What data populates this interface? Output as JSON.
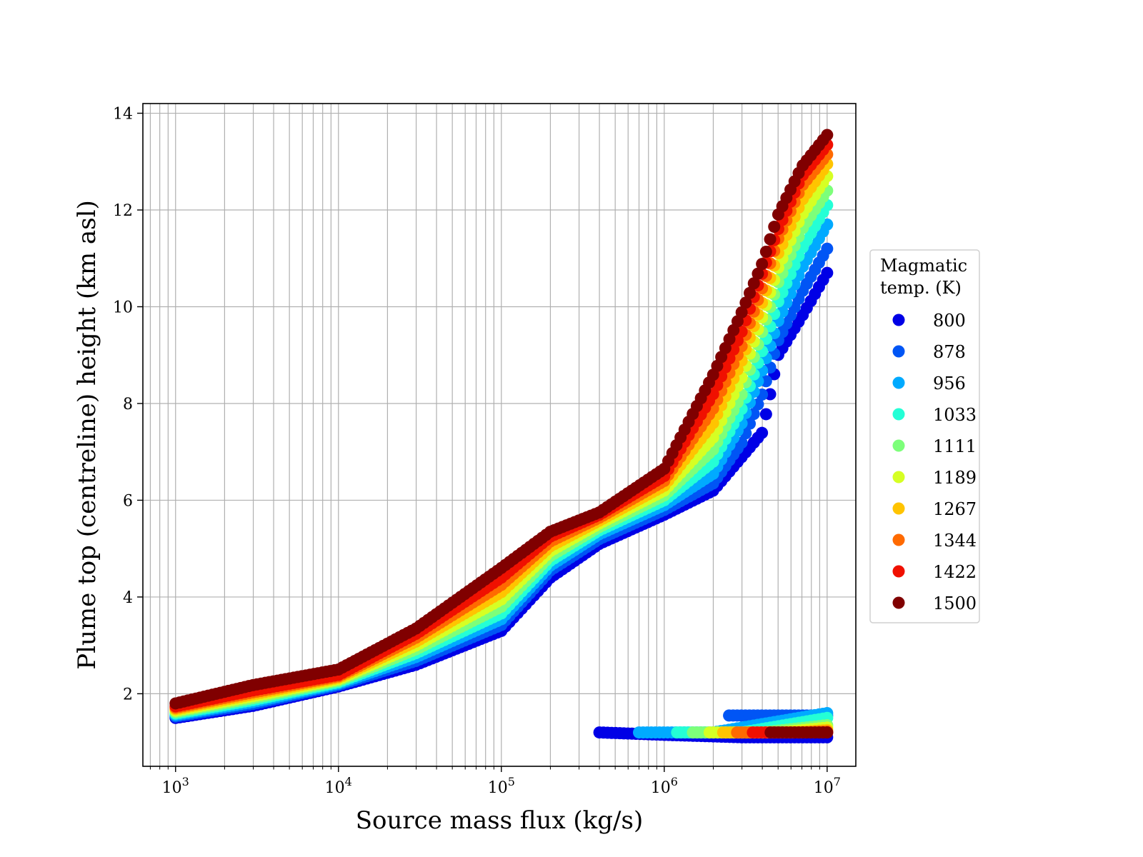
{
  "chart_data": {
    "type": "scatter",
    "title": "",
    "xlabel": "Source mass flux (kg/s)",
    "ylabel": "Plume top (centreline) height (km asl)",
    "xscale": "log",
    "xlim": [
      630,
      15000000
    ],
    "ylim": [
      0.5,
      14.2
    ],
    "x_ticks": [
      {
        "value": 1000,
        "base": "10",
        "exp": "3"
      },
      {
        "value": 10000,
        "base": "10",
        "exp": "4"
      },
      {
        "value": 100000,
        "base": "10",
        "exp": "5"
      },
      {
        "value": 1000000,
        "base": "10",
        "exp": "6"
      },
      {
        "value": 10000000,
        "base": "10",
        "exp": "7"
      }
    ],
    "y_ticks": [
      2,
      4,
      6,
      8,
      10,
      12,
      14
    ],
    "grid": true,
    "legend": {
      "title_lines": [
        "Magmatic",
        "temp. (K)"
      ],
      "placement": "outside-right"
    },
    "series": [
      {
        "name": "800",
        "color": "#0000e6",
        "main": [
          [
            1000,
            1.5
          ],
          [
            3000,
            1.75
          ],
          [
            10000,
            2.15
          ],
          [
            30000,
            2.6
          ],
          [
            100000,
            3.3
          ],
          [
            200000,
            4.4
          ],
          [
            400000,
            5.1
          ],
          [
            1000000,
            5.7
          ],
          [
            2000000,
            6.2
          ],
          [
            3000000,
            6.9
          ],
          [
            4000000,
            7.4
          ],
          [
            5000000,
            9.0
          ],
          [
            7000000,
            9.8
          ],
          [
            10000000,
            10.7
          ]
        ],
        "low": [
          [
            400000,
            1.2
          ],
          [
            1000000,
            1.15
          ],
          [
            3000000,
            1.1
          ],
          [
            10000000,
            1.1
          ]
        ]
      },
      {
        "name": "878",
        "color": "#0055f5",
        "main": [
          [
            1000,
            1.53
          ],
          [
            3000,
            1.79
          ],
          [
            10000,
            2.18
          ],
          [
            30000,
            2.68
          ],
          [
            100000,
            3.42
          ],
          [
            200000,
            4.55
          ],
          [
            400000,
            5.2
          ],
          [
            1000000,
            5.8
          ],
          [
            2000000,
            6.35
          ],
          [
            3000000,
            7.2
          ],
          [
            4000000,
            8.2
          ],
          [
            5000000,
            9.3
          ],
          [
            7000000,
            10.3
          ],
          [
            10000000,
            11.2
          ]
        ],
        "low": [
          [
            2500000,
            1.55
          ],
          [
            5000000,
            1.55
          ],
          [
            10000000,
            1.55
          ]
        ]
      },
      {
        "name": "956",
        "color": "#00aaff",
        "main": [
          [
            1000,
            1.56
          ],
          [
            3000,
            1.83
          ],
          [
            10000,
            2.21
          ],
          [
            30000,
            2.76
          ],
          [
            100000,
            3.54
          ],
          [
            200000,
            4.65
          ],
          [
            400000,
            5.3
          ],
          [
            1000000,
            5.9
          ],
          [
            2000000,
            6.55
          ],
          [
            3000000,
            7.6
          ],
          [
            4000000,
            8.7
          ],
          [
            5000000,
            9.7
          ],
          [
            7000000,
            10.8
          ],
          [
            10000000,
            11.7
          ]
        ],
        "low": [
          [
            700000,
            1.2
          ],
          [
            2000000,
            1.2
          ],
          [
            10000000,
            1.6
          ]
        ]
      },
      {
        "name": "1033",
        "color": "#24ffd6",
        "main": [
          [
            1000,
            1.59
          ],
          [
            3000,
            1.87
          ],
          [
            10000,
            2.24
          ],
          [
            30000,
            2.84
          ],
          [
            100000,
            3.66
          ],
          [
            200000,
            4.75
          ],
          [
            400000,
            5.38
          ],
          [
            1000000,
            6.0
          ],
          [
            2000000,
            6.8
          ],
          [
            3000000,
            7.9
          ],
          [
            4000000,
            9.1
          ],
          [
            5000000,
            10.1
          ],
          [
            7000000,
            11.2
          ],
          [
            10000000,
            12.1
          ]
        ],
        "low": [
          [
            1200000,
            1.2
          ],
          [
            3000000,
            1.2
          ],
          [
            10000000,
            1.5
          ]
        ]
      },
      {
        "name": "1111",
        "color": "#7dff7a",
        "main": [
          [
            1000,
            1.62
          ],
          [
            3000,
            1.91
          ],
          [
            10000,
            2.27
          ],
          [
            30000,
            2.92
          ],
          [
            100000,
            3.8
          ],
          [
            200000,
            4.85
          ],
          [
            400000,
            5.45
          ],
          [
            1000000,
            6.1
          ],
          [
            2000000,
            7.05
          ],
          [
            3000000,
            8.2
          ],
          [
            4000000,
            9.5
          ],
          [
            5000000,
            10.5
          ],
          [
            7000000,
            11.6
          ],
          [
            10000000,
            12.4
          ]
        ],
        "low": [
          [
            1500000,
            1.2
          ],
          [
            4000000,
            1.2
          ],
          [
            10000000,
            1.35
          ]
        ]
      },
      {
        "name": "1189",
        "color": "#d6ff24",
        "main": [
          [
            1000,
            1.65
          ],
          [
            3000,
            1.95
          ],
          [
            10000,
            2.3
          ],
          [
            30000,
            3.0
          ],
          [
            100000,
            3.95
          ],
          [
            200000,
            4.95
          ],
          [
            400000,
            5.52
          ],
          [
            1000000,
            6.2
          ],
          [
            2000000,
            7.3
          ],
          [
            3000000,
            8.55
          ],
          [
            4000000,
            9.8
          ],
          [
            5000000,
            10.8
          ],
          [
            7000000,
            11.9
          ],
          [
            10000000,
            12.7
          ]
        ],
        "low": [
          [
            1900000,
            1.2
          ],
          [
            5000000,
            1.2
          ],
          [
            10000000,
            1.3
          ]
        ]
      },
      {
        "name": "1267",
        "color": "#ffc400",
        "main": [
          [
            1000,
            1.68
          ],
          [
            3000,
            1.99
          ],
          [
            10000,
            2.33
          ],
          [
            30000,
            3.08
          ],
          [
            100000,
            4.1
          ],
          [
            200000,
            5.05
          ],
          [
            400000,
            5.58
          ],
          [
            1000000,
            6.3
          ],
          [
            2000000,
            7.6
          ],
          [
            3000000,
            8.9
          ],
          [
            4000000,
            10.1
          ],
          [
            5000000,
            11.1
          ],
          [
            7000000,
            12.2
          ],
          [
            10000000,
            12.95
          ]
        ],
        "low": [
          [
            2300000,
            1.2
          ],
          [
            6000000,
            1.2
          ],
          [
            10000000,
            1.25
          ]
        ]
      },
      {
        "name": "1344",
        "color": "#ff6a00",
        "main": [
          [
            1000,
            1.71
          ],
          [
            3000,
            2.03
          ],
          [
            10000,
            2.36
          ],
          [
            30000,
            3.16
          ],
          [
            100000,
            4.25
          ],
          [
            200000,
            5.15
          ],
          [
            400000,
            5.64
          ],
          [
            1000000,
            6.4
          ],
          [
            2000000,
            7.9
          ],
          [
            3000000,
            9.2
          ],
          [
            4000000,
            10.4
          ],
          [
            5000000,
            11.4
          ],
          [
            7000000,
            12.5
          ],
          [
            10000000,
            13.15
          ]
        ],
        "low": [
          [
            2800000,
            1.2
          ],
          [
            7000000,
            1.2
          ],
          [
            10000000,
            1.22
          ]
        ]
      },
      {
        "name": "1422",
        "color": "#f01000",
        "main": [
          [
            1000,
            1.74
          ],
          [
            3000,
            2.07
          ],
          [
            10000,
            2.39
          ],
          [
            30000,
            3.24
          ],
          [
            100000,
            4.4
          ],
          [
            200000,
            5.25
          ],
          [
            400000,
            5.7
          ],
          [
            1000000,
            6.5
          ],
          [
            2000000,
            8.2
          ],
          [
            3000000,
            9.5
          ],
          [
            4000000,
            10.7
          ],
          [
            5000000,
            11.6
          ],
          [
            7000000,
            12.7
          ],
          [
            10000000,
            13.35
          ]
        ],
        "low": [
          [
            3500000,
            1.2
          ],
          [
            8000000,
            1.2
          ],
          [
            10000000,
            1.2
          ]
        ]
      },
      {
        "name": "1500",
        "color": "#800000",
        "main": [
          [
            1000,
            1.8
          ],
          [
            3000,
            2.18
          ],
          [
            10000,
            2.5
          ],
          [
            30000,
            3.35
          ],
          [
            100000,
            4.6
          ],
          [
            200000,
            5.35
          ],
          [
            400000,
            5.75
          ],
          [
            1000000,
            6.65
          ],
          [
            2000000,
            8.6
          ],
          [
            3000000,
            9.9
          ],
          [
            4000000,
            10.9
          ],
          [
            5000000,
            11.9
          ],
          [
            7000000,
            12.9
          ],
          [
            10000000,
            13.55
          ]
        ],
        "low": [
          [
            4500000,
            1.2
          ],
          [
            10000000,
            1.2
          ]
        ]
      }
    ]
  }
}
